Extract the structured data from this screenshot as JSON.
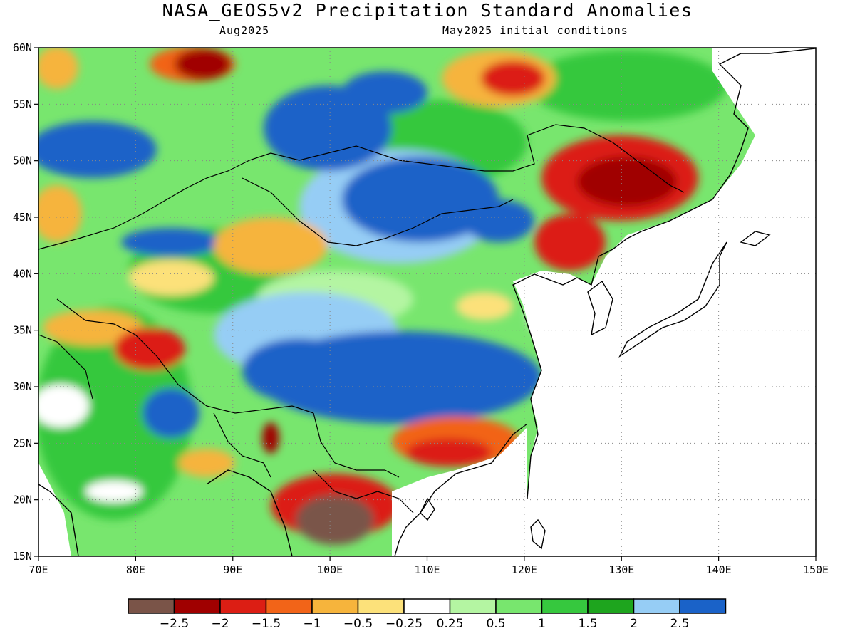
{
  "title": "NASA_GEOS5v2 Precipitation Standard Anomalies",
  "subtitle_left": "Aug2025",
  "subtitle_right": "May2025 initial conditions",
  "map": {
    "lon_range": [
      70,
      150
    ],
    "lat_range": [
      15,
      60
    ],
    "lon_ticks": [
      "70E",
      "80E",
      "90E",
      "100E",
      "110E",
      "120E",
      "130E",
      "140E",
      "150E"
    ],
    "lat_ticks": [
      "15N",
      "20N",
      "25N",
      "30N",
      "35N",
      "40N",
      "45N",
      "50N",
      "55N",
      "60N"
    ],
    "grid": "dotted"
  },
  "colorbar": {
    "colors": [
      "#7a5448",
      "#a00000",
      "#dc1e14",
      "#f26418",
      "#f6b43c",
      "#fce17a",
      "#ffffff",
      "#b4f5a2",
      "#78e66e",
      "#36c83e",
      "#1ea51e",
      "#96cdf5",
      "#1a62c8"
    ],
    "labels": [
      "−2.5",
      "−2",
      "−1.5",
      "−1",
      "−0.5",
      "−0.25",
      "0.25",
      "0.5",
      "1",
      "1.5",
      "2",
      "2.5"
    ]
  },
  "regions": [
    {
      "name": "northwest-mongolia-china-wet",
      "class": "wet-strong",
      "color": "#1a62c8",
      "lon": [
        90,
        100
      ],
      "lat": [
        47,
        55
      ]
    },
    {
      "name": "inner-mongolia-wet",
      "class": "wet-strong",
      "color": "#1a62c8",
      "lon": [
        102,
        116
      ],
      "lat": [
        42,
        51
      ]
    },
    {
      "name": "central-china-wet",
      "class": "wet-strong",
      "color": "#1a62c8",
      "lon": [
        93,
        121
      ],
      "lat": [
        26,
        35
      ]
    },
    {
      "name": "kazakhstan-wet",
      "class": "wet-strong",
      "color": "#1a62c8",
      "lon": [
        70,
        84
      ],
      "lat": [
        48,
        53
      ]
    },
    {
      "name": "northeast-china-dry",
      "class": "dry-strong",
      "color": "#a00000",
      "lon": [
        123,
        139
      ],
      "lat": [
        42,
        53
      ]
    },
    {
      "name": "south-china-dry",
      "class": "dry",
      "color": "#dc1e14",
      "lon": [
        108,
        120
      ],
      "lat": [
        22,
        26
      ]
    },
    {
      "name": "indochina-dry",
      "class": "dry-strong",
      "color": "#7a5448",
      "lon": [
        94,
        106
      ],
      "lat": [
        15,
        22
      ]
    },
    {
      "name": "tibet-west-dry",
      "class": "dry",
      "color": "#dc1e14",
      "lon": [
        76,
        84
      ],
      "lat": [
        30,
        36
      ]
    },
    {
      "name": "siberia-north-dry",
      "class": "dry",
      "color": "#a00000",
      "lon": [
        84,
        90
      ],
      "lat": [
        56,
        60
      ]
    }
  ]
}
